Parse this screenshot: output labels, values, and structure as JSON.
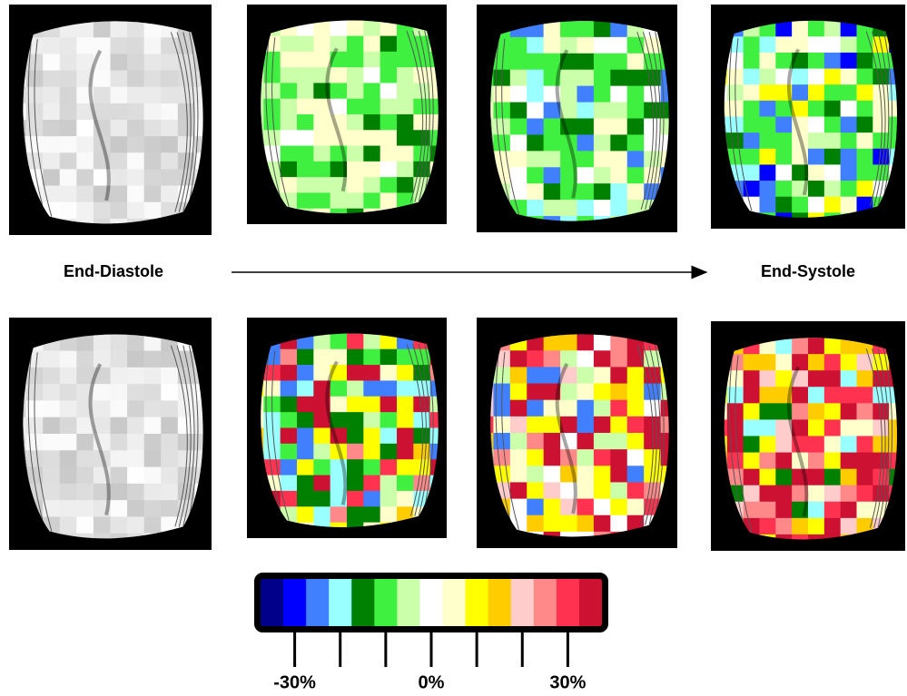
{
  "labels": {
    "start": "End-Diastole",
    "end": "End-Systole"
  },
  "colorbar": {
    "colors": [
      "#00008b",
      "#0000ff",
      "#4080ff",
      "#99ffff",
      "#008000",
      "#40f040",
      "#ccffaa",
      "#ffffff",
      "#ffffcc",
      "#ffff00",
      "#ffcc00",
      "#ffcccc",
      "#ff8888",
      "#ff3350",
      "#cc1133"
    ],
    "range": [
      -37.5,
      37.5
    ],
    "tick_marks": [
      -30,
      -20,
      -10,
      0,
      10,
      20,
      30
    ],
    "tick_labels": [
      {
        "value": -30,
        "label": "-30%"
      },
      {
        "value": 0,
        "label": "0%"
      },
      {
        "value": 30,
        "label": "30%"
      }
    ]
  }
}
